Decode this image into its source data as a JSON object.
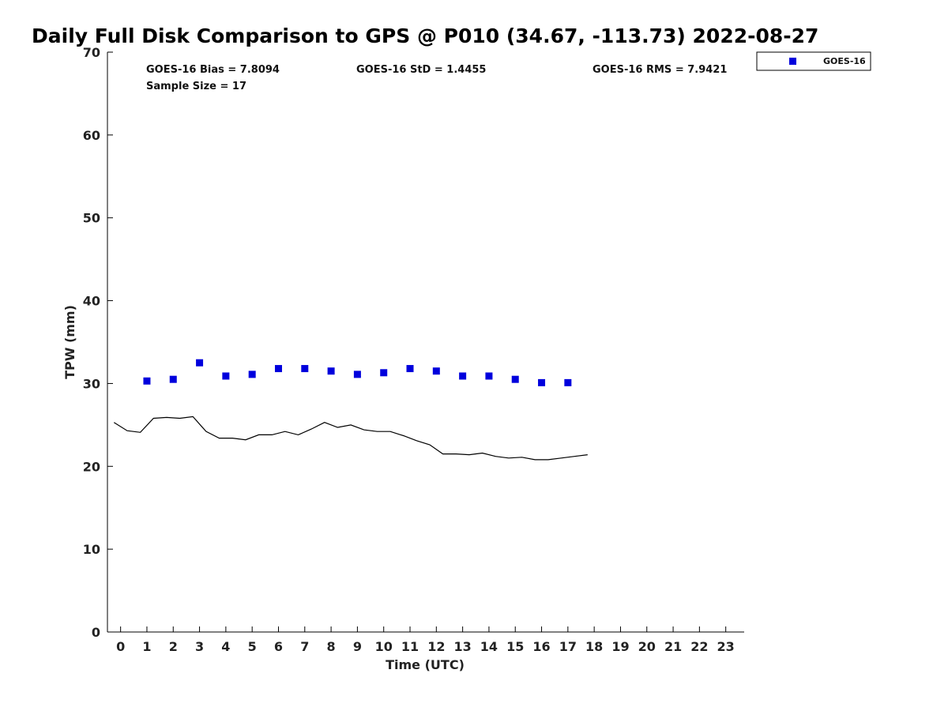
{
  "chart_data": {
    "type": "scatter",
    "title": "Daily Full Disk Comparison to GPS @ P010 (34.67, -113.73) 2022-08-27",
    "xlabel": "Time (UTC)",
    "ylabel": "TPW (mm)",
    "xlim": [
      -0.5,
      23.7
    ],
    "ylim": [
      0,
      70
    ],
    "x_ticks": [
      0,
      1,
      2,
      3,
      4,
      5,
      6,
      7,
      8,
      9,
      10,
      11,
      12,
      13,
      14,
      15,
      16,
      17,
      18,
      19,
      20,
      21,
      22,
      23
    ],
    "y_ticks": [
      0,
      10,
      20,
      30,
      40,
      50,
      60,
      70
    ],
    "grid": false,
    "legend_position": "top-right-outside",
    "stats": {
      "bias": "GOES-16 Bias = 7.8094",
      "std": "GOES-16 StD = 1.4455",
      "rms": "GOES-16 RMS = 7.9421",
      "sample": "Sample Size = 17"
    },
    "series": [
      {
        "name": "GOES-16",
        "marker": "square",
        "color": "#0000dd",
        "x": [
          1,
          2,
          3,
          4,
          5,
          6,
          7,
          8,
          9,
          10,
          11,
          12,
          13,
          14,
          15,
          16,
          17
        ],
        "y": [
          30.3,
          30.5,
          32.5,
          30.9,
          31.1,
          31.8,
          31.8,
          31.5,
          31.1,
          31.3,
          31.8,
          31.5,
          30.9,
          30.9,
          30.5,
          30.1,
          30.1
        ]
      },
      {
        "marker": "line",
        "color": "#000000",
        "x": [
          -0.25,
          0.25,
          0.75,
          1.25,
          1.75,
          2.25,
          2.75,
          3.25,
          3.75,
          4.25,
          4.75,
          5.25,
          5.75,
          6.25,
          6.75,
          7.25,
          7.75,
          8.25,
          8.75,
          9.25,
          9.75,
          10.25,
          10.75,
          11.25,
          11.75,
          12.25,
          12.75,
          13.25,
          13.75,
          14.25,
          14.75,
          15.25,
          15.75,
          16.25,
          16.75,
          17.25,
          17.75
        ],
        "y": [
          25.3,
          24.3,
          24.1,
          25.8,
          25.9,
          25.8,
          26.0,
          24.2,
          23.4,
          23.4,
          23.2,
          23.8,
          23.8,
          24.2,
          23.8,
          24.5,
          25.3,
          24.7,
          25.0,
          24.4,
          24.2,
          24.2,
          23.7,
          23.1,
          22.6,
          21.5,
          21.5,
          21.4,
          21.6,
          21.2,
          21.0,
          21.1,
          20.8,
          20.8,
          21.0,
          21.2,
          21.4
        ]
      }
    ]
  }
}
